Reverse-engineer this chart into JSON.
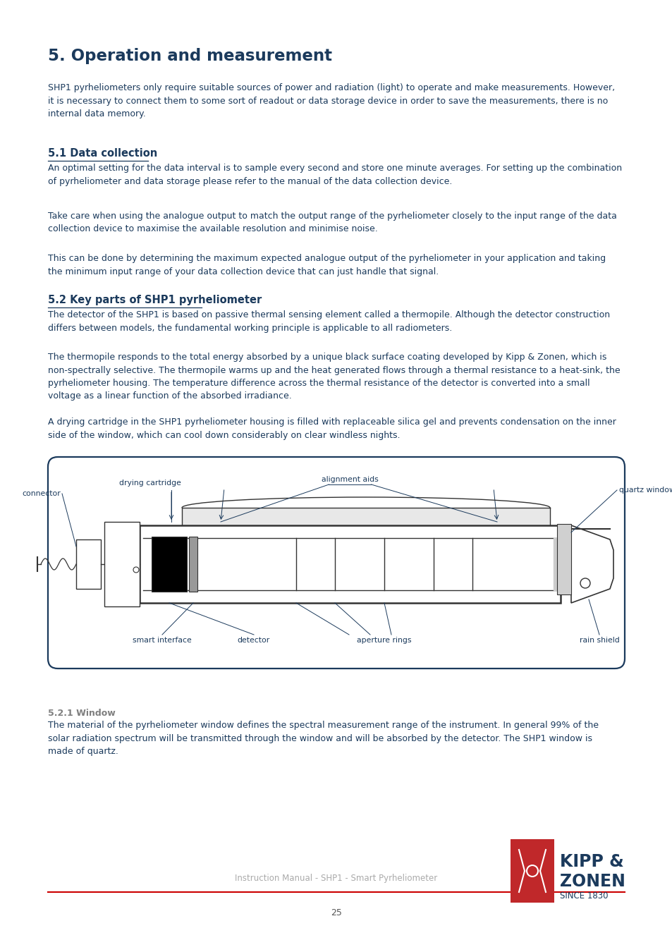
{
  "title": "5. Operation and measurement",
  "title_color": "#1b3a5c",
  "body_color": "#1b3a5c",
  "bg_color": "#ffffff",
  "section_51_heading": "5.1 Data collection",
  "section_52_heading": "5.2 Key parts of SHP1 pyrheliometer",
  "section_521_heading": "5.2.1 Window",
  "section_521_heading_color": "#7f7f7f",
  "intro_p1": "SHP1 pyrheliometers only require suitable sources of power and radiation (light) to operate and make measurements. However,\nit is necessary to connect them to some sort of readout or data storage device in order to save the measurements, there is no\ninternal data memory.",
  "section_51_p1": "An optimal setting for the data interval is to sample every second and store one minute averages. For setting up the combination\nof pyrheliometer and data storage please refer to the manual of the data collection device.",
  "section_51_p2": "Take care when using the analogue output to match the output range of the pyrheliometer closely to the input range of the data\ncollection device to maximise the available resolution and minimise noise.",
  "section_51_p3": "This can be done by determining the maximum expected analogue output of the pyrheliometer in your application and taking\nthe minimum input range of your data collection device that can just handle that signal.",
  "section_52_p1": "The detector of the SHP1 is based on passive thermal sensing element called a thermopile. Although the detector construction\ndiffers between models, the fundamental working principle is applicable to all radiometers.",
  "section_52_p2": "The thermopile responds to the total energy absorbed by a unique black surface coating developed by Kipp & Zonen, which is\nnon-spectrally selective. The thermopile warms up and the heat generated flows through a thermal resistance to a heat-sink, the\npyrheliometer housing. The temperature difference across the thermal resistance of the detector is converted into a small\nvoltage as a linear function of the absorbed irradiance.",
  "section_52_p3": "A drying cartridge in the SHP1 pyrheliometer housing is filled with replaceable silica gel and prevents condensation on the inner\nside of the window, which can cool down considerably on clear windless nights.",
  "section_521_p1": "The material of the pyrheliometer window defines the spectral measurement range of the instrument. In general 99% of the\nsolar radiation spectrum will be transmitted through the window and will be absorbed by the detector. The SHP1 window is\nmade of quartz.",
  "footer_text": "Instruction Manual - SHP1 - Smart Pyrheliometer",
  "page_number": "25",
  "footer_line_color": "#cc0000",
  "box_border_color": "#1b3a5c",
  "label_color": "#1b3a5c",
  "diagram_line_color": "#333333"
}
